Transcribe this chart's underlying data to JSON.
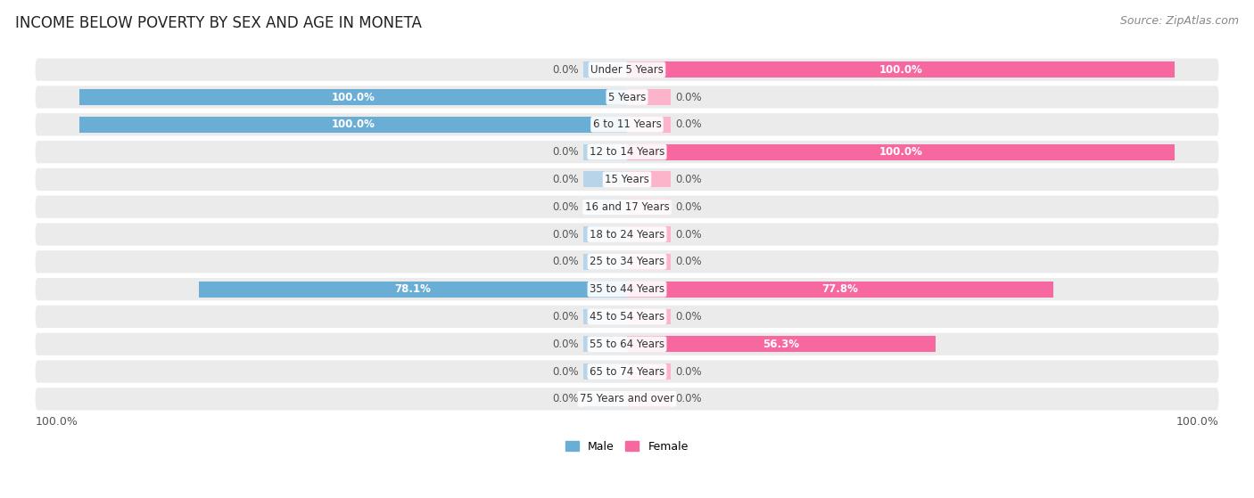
{
  "title": "INCOME BELOW POVERTY BY SEX AND AGE IN MONETA",
  "source": "Source: ZipAtlas.com",
  "categories": [
    "Under 5 Years",
    "5 Years",
    "6 to 11 Years",
    "12 to 14 Years",
    "15 Years",
    "16 and 17 Years",
    "18 to 24 Years",
    "25 to 34 Years",
    "35 to 44 Years",
    "45 to 54 Years",
    "55 to 64 Years",
    "65 to 74 Years",
    "75 Years and over"
  ],
  "male_values": [
    0.0,
    100.0,
    100.0,
    0.0,
    0.0,
    0.0,
    0.0,
    0.0,
    78.1,
    0.0,
    0.0,
    0.0,
    0.0
  ],
  "female_values": [
    100.0,
    0.0,
    0.0,
    100.0,
    0.0,
    0.0,
    0.0,
    0.0,
    77.8,
    0.0,
    56.3,
    0.0,
    0.0
  ],
  "male_color": "#6aaed6",
  "male_stub_color": "#b8d4e8",
  "female_color": "#f768a1",
  "female_stub_color": "#fbb4c9",
  "male_label": "Male",
  "female_label": "Female",
  "bar_height": 0.58,
  "stub_scale": 8.0,
  "bg_color": "#ebebeb",
  "title_fontsize": 12,
  "source_fontsize": 9,
  "value_fontsize": 8.5,
  "cat_fontsize": 8.5,
  "axis_label_fontsize": 9,
  "legend_fontsize": 9
}
